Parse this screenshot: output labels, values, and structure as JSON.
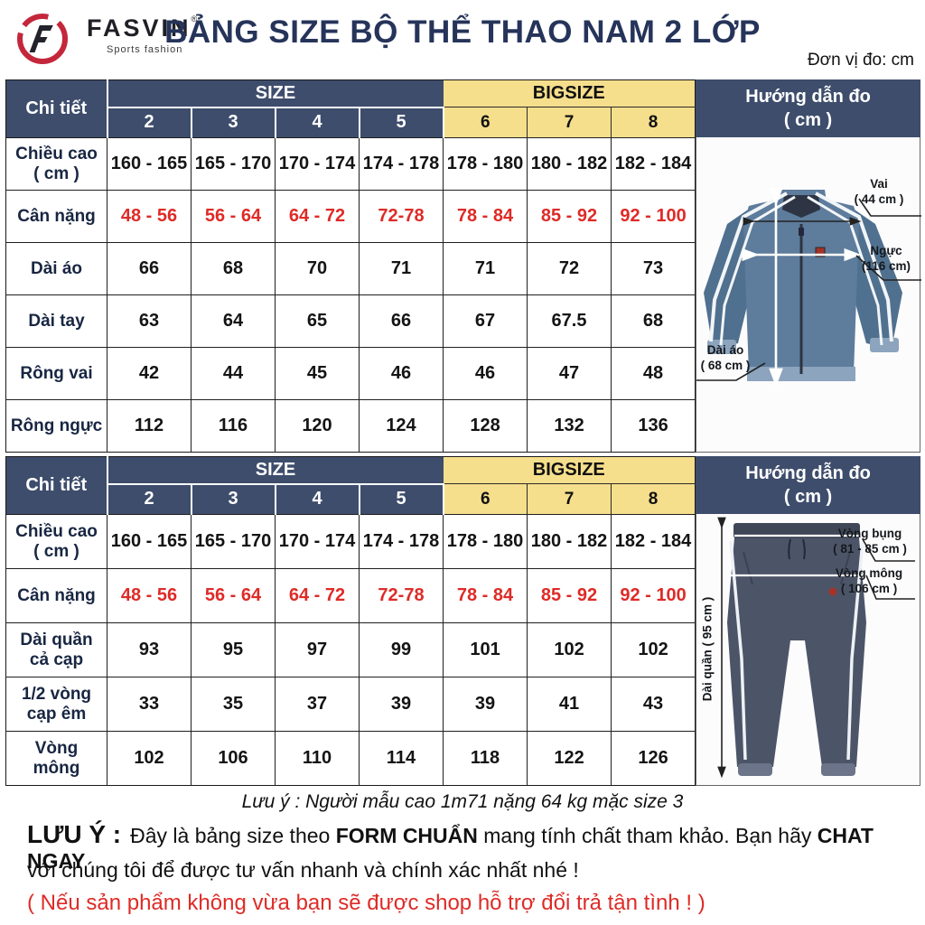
{
  "colors": {
    "navy": "#3E4D6C",
    "navy-dark": "#26345A",
    "yellow": "#F6DF8C",
    "red": "#DE2B27",
    "jacket": "#5E7C9C",
    "jacket-dark": "#50708F",
    "jacket-light": "#8CA4BD",
    "pants": "#4C5568",
    "pants-dark": "#3F4757",
    "pants-light": "#6B7488",
    "logo-red": "#C4273B"
  },
  "header": {
    "brand": "FASVIN",
    "brand_mark": "®",
    "brand_sub": "Sports fashion",
    "title": "BẢNG SIZE BỘ THỂ THAO NAM 2 LỚP",
    "unit_note": "Đơn vị đo: cm"
  },
  "tables": [
    {
      "corner_label": "Chi tiết",
      "size_group": "SIZE",
      "bigsize_group": "BIGSIZE",
      "size_cols": [
        "2",
        "3",
        "4",
        "5"
      ],
      "bigsize_cols": [
        "6",
        "7",
        "8"
      ],
      "rows": [
        {
          "label": "Chiều cao\n( cm )",
          "values": [
            "160 - 165",
            "165 - 170",
            "170 - 174",
            "174 - 178",
            "178 - 180",
            "180 - 182",
            "182 - 184"
          ],
          "style": "normal"
        },
        {
          "label": "Cân nặng",
          "values": [
            "48 - 56",
            "56 - 64",
            "64 - 72",
            "72-78",
            "78 - 84",
            "85 - 92",
            "92 - 100"
          ],
          "style": "red"
        },
        {
          "label": "Dài áo",
          "values": [
            "66",
            "68",
            "70",
            "71",
            "71",
            "72",
            "73"
          ],
          "style": "normal"
        },
        {
          "label": "Dài tay",
          "values": [
            "63",
            "64",
            "65",
            "66",
            "67",
            "67.5",
            "68"
          ],
          "style": "normal"
        },
        {
          "label": "Rông vai",
          "values": [
            "42",
            "44",
            "45",
            "46",
            "46",
            "47",
            "48"
          ],
          "style": "normal"
        },
        {
          "label": "Rông ngực",
          "values": [
            "112",
            "116",
            "120",
            "124",
            "128",
            "132",
            "136"
          ],
          "style": "normal"
        }
      ],
      "guide": {
        "title": "Hướng dẫn đo",
        "subtitle": "( cm )",
        "annotations": {
          "vai": {
            "l1": "Vai",
            "l2": "( 44 cm )"
          },
          "nguc": {
            "l1": "Ngực",
            "l2": "(116 cm)"
          },
          "daiao": {
            "l1": "Dài áo",
            "l2": "( 68 cm )"
          }
        }
      }
    },
    {
      "corner_label": "Chi tiết",
      "size_group": "SIZE",
      "bigsize_group": "BIGSIZE",
      "size_cols": [
        "2",
        "3",
        "4",
        "5"
      ],
      "bigsize_cols": [
        "6",
        "7",
        "8"
      ],
      "rows": [
        {
          "label": "Chiều cao\n( cm )",
          "values": [
            "160 - 165",
            "165 - 170",
            "170 - 174",
            "174 - 178",
            "178 - 180",
            "180 - 182",
            "182 - 184"
          ],
          "style": "normal"
        },
        {
          "label": "Cân nặng",
          "values": [
            "48 - 56",
            "56 - 64",
            "64 - 72",
            "72-78",
            "78 - 84",
            "85 - 92",
            "92 - 100"
          ],
          "style": "red"
        },
        {
          "label": "Dài quần\ncả cạp",
          "values": [
            "93",
            "95",
            "97",
            "99",
            "101",
            "102",
            "102"
          ],
          "style": "normal"
        },
        {
          "label": "1/2 vòng\ncạp êm",
          "values": [
            "33",
            "35",
            "37",
            "39",
            "39",
            "41",
            "43"
          ],
          "style": "normal"
        },
        {
          "label": "Vòng\nmông",
          "values": [
            "102",
            "106",
            "110",
            "114",
            "118",
            "122",
            "126"
          ],
          "style": "normal"
        }
      ],
      "guide": {
        "title": "Hướng dẫn đo",
        "subtitle": "( cm )",
        "annotations": {
          "vbung": {
            "l1": "Vòng bụng",
            "l2": "( 81 - 85 cm )"
          },
          "vmong": {
            "l1": "Vòng mông",
            "l2": "( 106 cm )"
          },
          "dquan": {
            "text": "Dài quần ( 95 cm )"
          }
        }
      }
    }
  ],
  "footer": {
    "model_note": "Lưu ý : Người mẫu cao 1m71 nặng 64 kg mặc size 3",
    "warn_label": "LƯU Ý :",
    "line1_segments": [
      {
        "text": "Đây là bảng size theo ",
        "bold": false
      },
      {
        "text": "FORM CHUẨN",
        "bold": true
      },
      {
        "text": " mang tính chất tham khảo. Bạn hãy ",
        "bold": false
      },
      {
        "text": "CHAT NGAY",
        "bold": true
      }
    ],
    "line2": "với chúng tôi để được tư vấn nhanh và chính xác nhất nhé !",
    "line3_red": "( Nếu sản phẩm không vừa bạn sẽ được shop hỗ trợ đổi trả tận tình ! )"
  }
}
